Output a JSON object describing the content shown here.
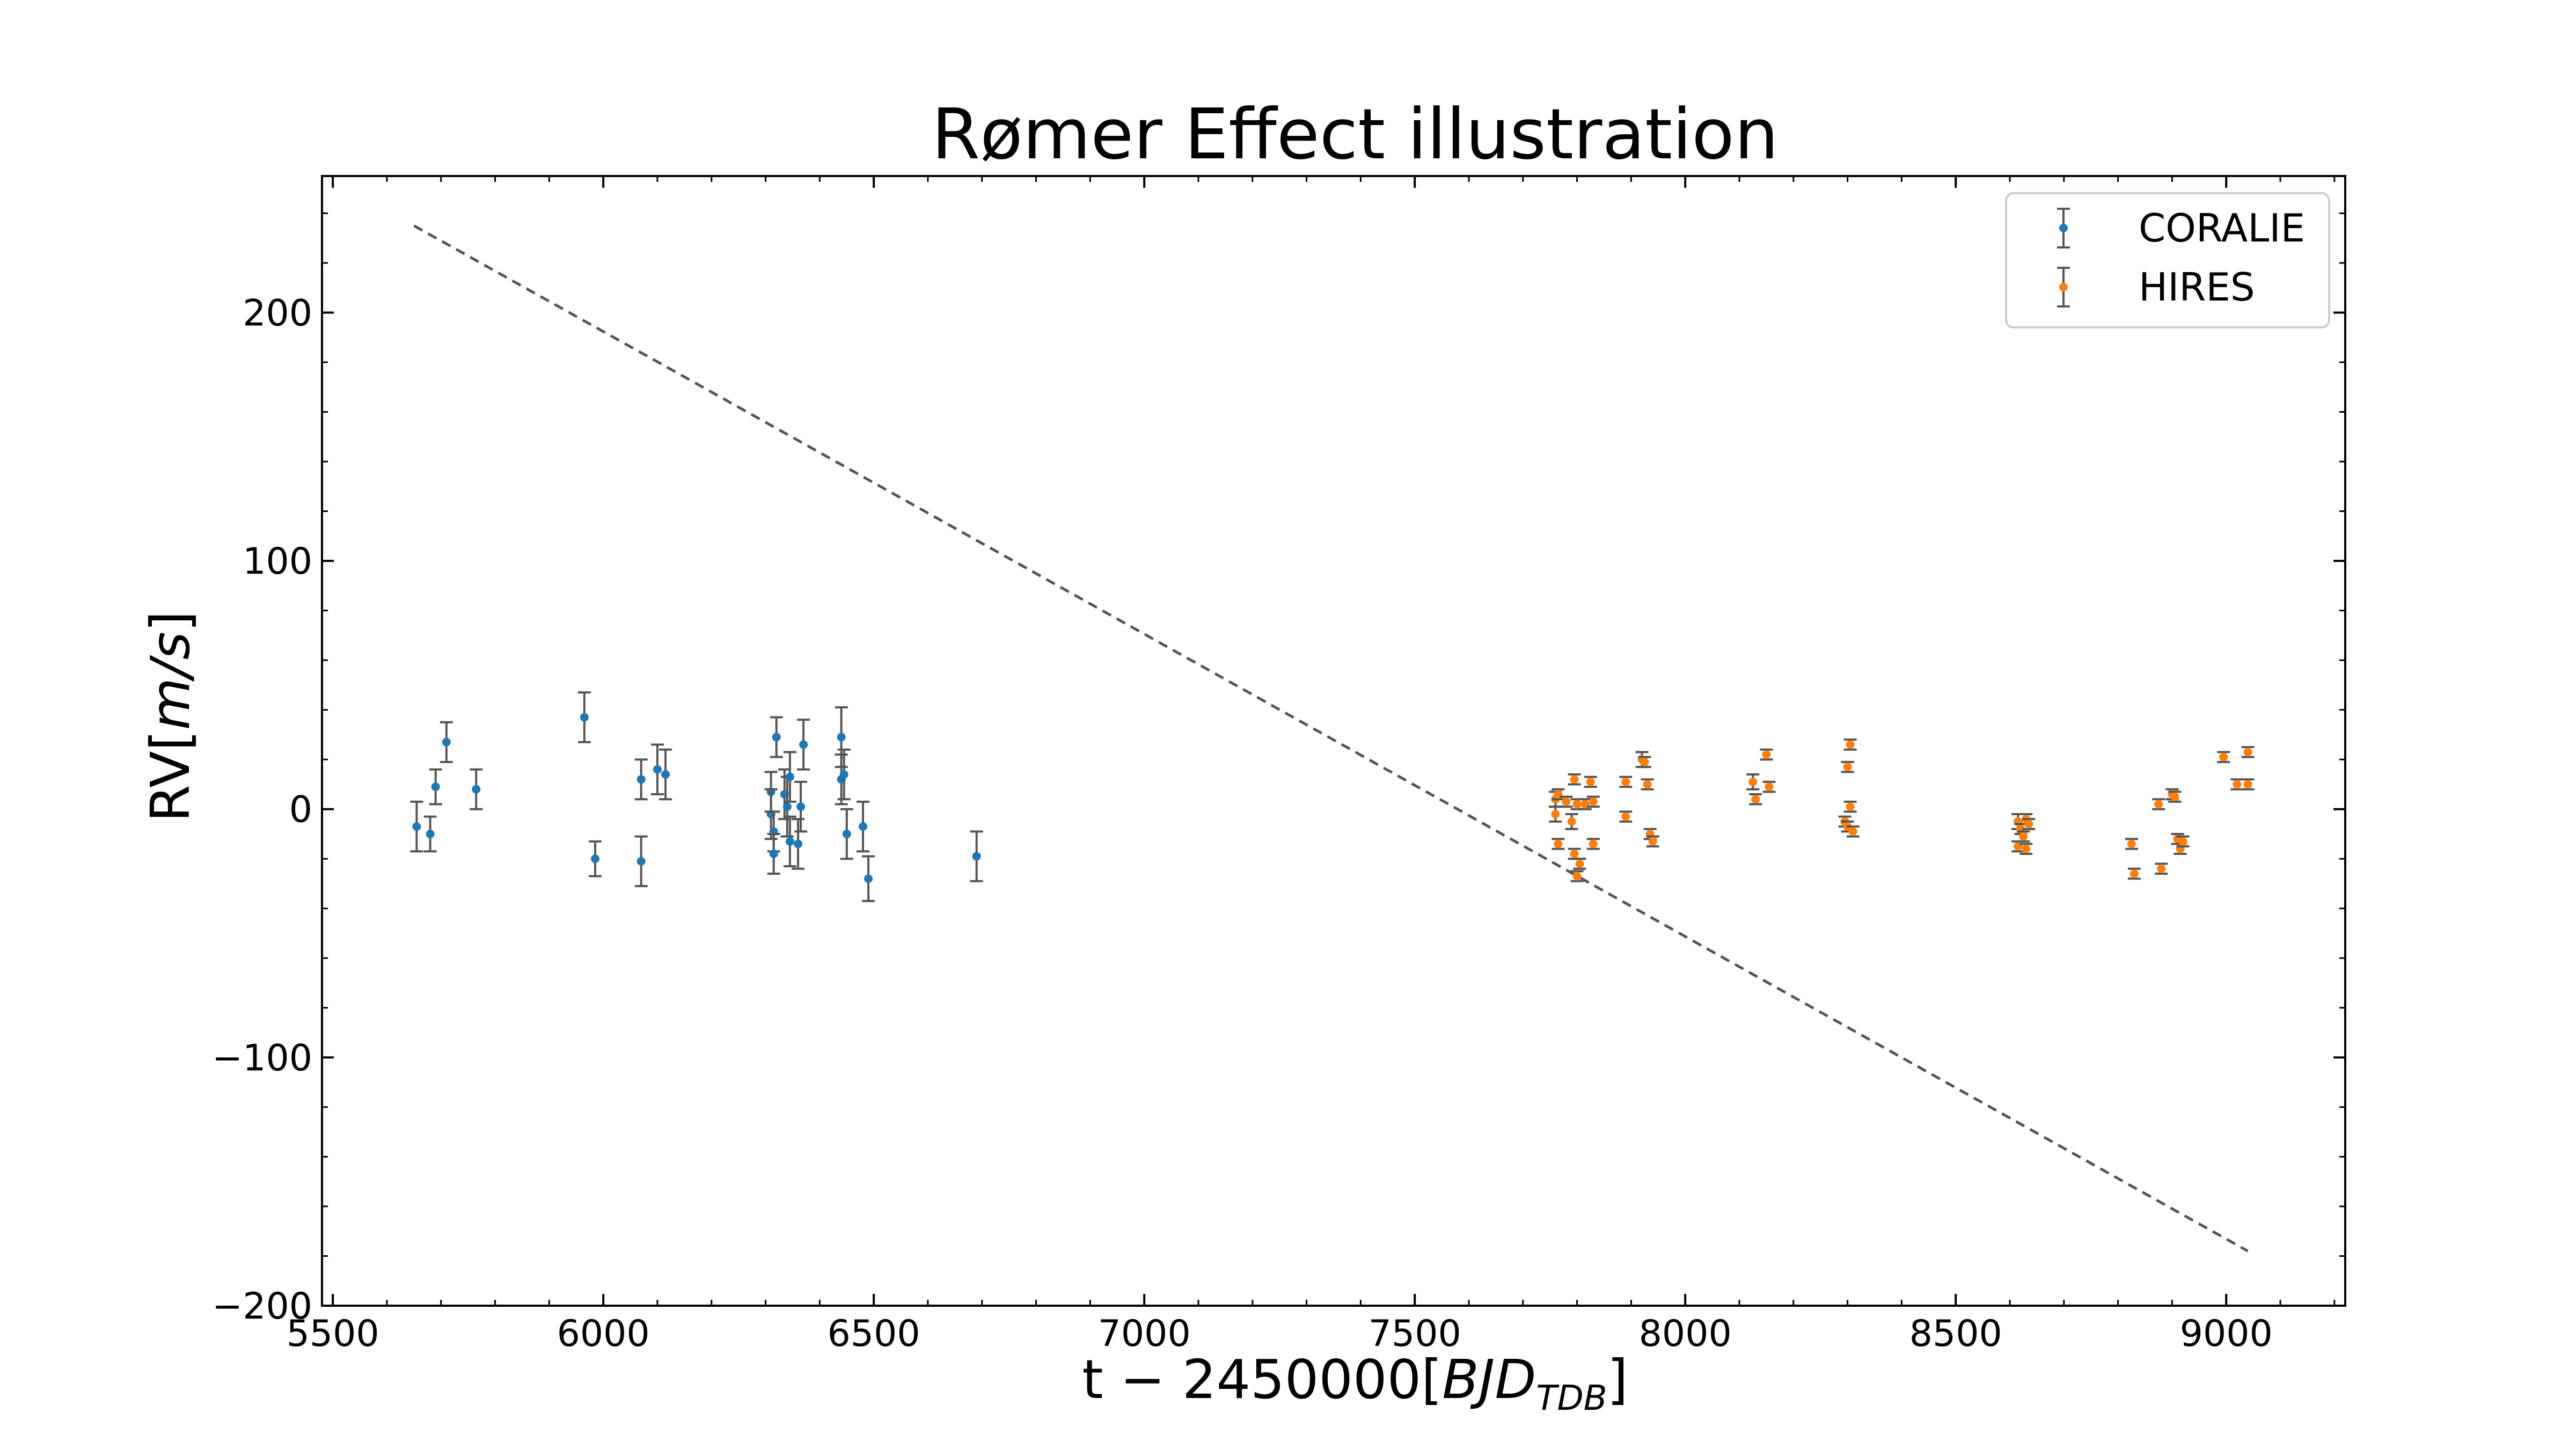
{
  "chart_data": {
    "type": "scatter",
    "title": "Rømer Effect illustration",
    "xlabel": {
      "main": "t − 2450000[",
      "italic": "BJD",
      "sub": "TDB",
      "close": "]"
    },
    "ylabel": {
      "main": "RV[",
      "italic": "m/s",
      "close": "]"
    },
    "xlim": [
      5480,
      9220
    ],
    "ylim": [
      -200,
      255
    ],
    "x_ticks": [
      5500,
      6000,
      6500,
      7000,
      7500,
      8000,
      8500,
      9000
    ],
    "x_tick_labels": [
      "5500",
      "6000",
      "6500",
      "7000",
      "7500",
      "8000",
      "8500",
      "9000"
    ],
    "y_ticks": [
      -200,
      -100,
      0,
      100,
      200
    ],
    "y_tick_labels": [
      "−200",
      "−100",
      "0",
      "100",
      "200"
    ],
    "grid": false,
    "legend_position": "top-right",
    "trend_line": {
      "x": [
        5650,
        9040
      ],
      "y": [
        235,
        -178
      ],
      "style": "dashed",
      "color": "#555555"
    },
    "series": [
      {
        "name": "CORALIE",
        "color": "#1f77b4",
        "errcolor": "#555555",
        "points": [
          [
            5655,
            -7,
            10
          ],
          [
            5680,
            -10,
            7
          ],
          [
            5690,
            9,
            7
          ],
          [
            5710,
            27,
            8
          ],
          [
            5765,
            8,
            8
          ],
          [
            5965,
            37,
            10
          ],
          [
            5985,
            -20,
            7
          ],
          [
            6070,
            12,
            8
          ],
          [
            6070,
            -21,
            10
          ],
          [
            6100,
            16,
            10
          ],
          [
            6115,
            14,
            10
          ],
          [
            6310,
            7,
            8
          ],
          [
            6310,
            -2,
            10
          ],
          [
            6315,
            -9,
            8
          ],
          [
            6315,
            -18,
            8
          ],
          [
            6320,
            29,
            8
          ],
          [
            6335,
            6,
            10
          ],
          [
            6340,
            1,
            12
          ],
          [
            6345,
            13,
            10
          ],
          [
            6345,
            -13,
            10
          ],
          [
            6360,
            -14,
            10
          ],
          [
            6365,
            1,
            10
          ],
          [
            6370,
            26,
            10
          ],
          [
            6440,
            12,
            10
          ],
          [
            6440,
            29,
            12
          ],
          [
            6445,
            14,
            10
          ],
          [
            6450,
            -10,
            10
          ],
          [
            6480,
            -7,
            10
          ],
          [
            6490,
            -28,
            9
          ],
          [
            6690,
            -19,
            10
          ]
        ]
      },
      {
        "name": "HIRES",
        "color": "#ff7f0e",
        "errcolor": "#555555",
        "points": [
          [
            7760,
            4,
            3
          ],
          [
            7760,
            -2,
            3
          ],
          [
            7765,
            -14,
            2
          ],
          [
            7765,
            6,
            2
          ],
          [
            7780,
            3,
            2
          ],
          [
            7790,
            -5,
            3
          ],
          [
            7795,
            12,
            2
          ],
          [
            7795,
            -18,
            2
          ],
          [
            7800,
            -27,
            2
          ],
          [
            7800,
            2,
            2
          ],
          [
            7805,
            -22,
            2
          ],
          [
            7815,
            2,
            2
          ],
          [
            7825,
            11,
            2
          ],
          [
            7830,
            -14,
            2
          ],
          [
            7830,
            3,
            2
          ],
          [
            7890,
            -3,
            2
          ],
          [
            7890,
            11,
            2
          ],
          [
            7920,
            20,
            3
          ],
          [
            7925,
            19,
            2
          ],
          [
            7930,
            10,
            2
          ],
          [
            7935,
            -10,
            2
          ],
          [
            7940,
            -13,
            2
          ],
          [
            8125,
            11,
            3
          ],
          [
            8130,
            4,
            2
          ],
          [
            8150,
            22,
            2
          ],
          [
            8155,
            9,
            2
          ],
          [
            8295,
            -5,
            2
          ],
          [
            8300,
            17,
            2
          ],
          [
            8300,
            -7,
            2
          ],
          [
            8305,
            26,
            2
          ],
          [
            8305,
            1,
            2
          ],
          [
            8310,
            -9,
            2
          ],
          [
            8615,
            -5,
            3
          ],
          [
            8615,
            -15,
            2
          ],
          [
            8620,
            -8,
            2
          ],
          [
            8625,
            -11,
            2
          ],
          [
            8630,
            -16,
            2
          ],
          [
            8630,
            -4,
            2
          ],
          [
            8635,
            -6,
            2
          ],
          [
            8825,
            -14,
            2
          ],
          [
            8830,
            -26,
            2
          ],
          [
            8875,
            2,
            2
          ],
          [
            8880,
            -24,
            2
          ],
          [
            8900,
            6,
            2
          ],
          [
            8905,
            5,
            2
          ],
          [
            8910,
            -12,
            2
          ],
          [
            8915,
            -16,
            2
          ],
          [
            8920,
            -13,
            2
          ],
          [
            8995,
            21,
            2
          ],
          [
            9020,
            10,
            2
          ],
          [
            9040,
            10,
            2
          ],
          [
            9040,
            23,
            2
          ]
        ]
      }
    ]
  }
}
